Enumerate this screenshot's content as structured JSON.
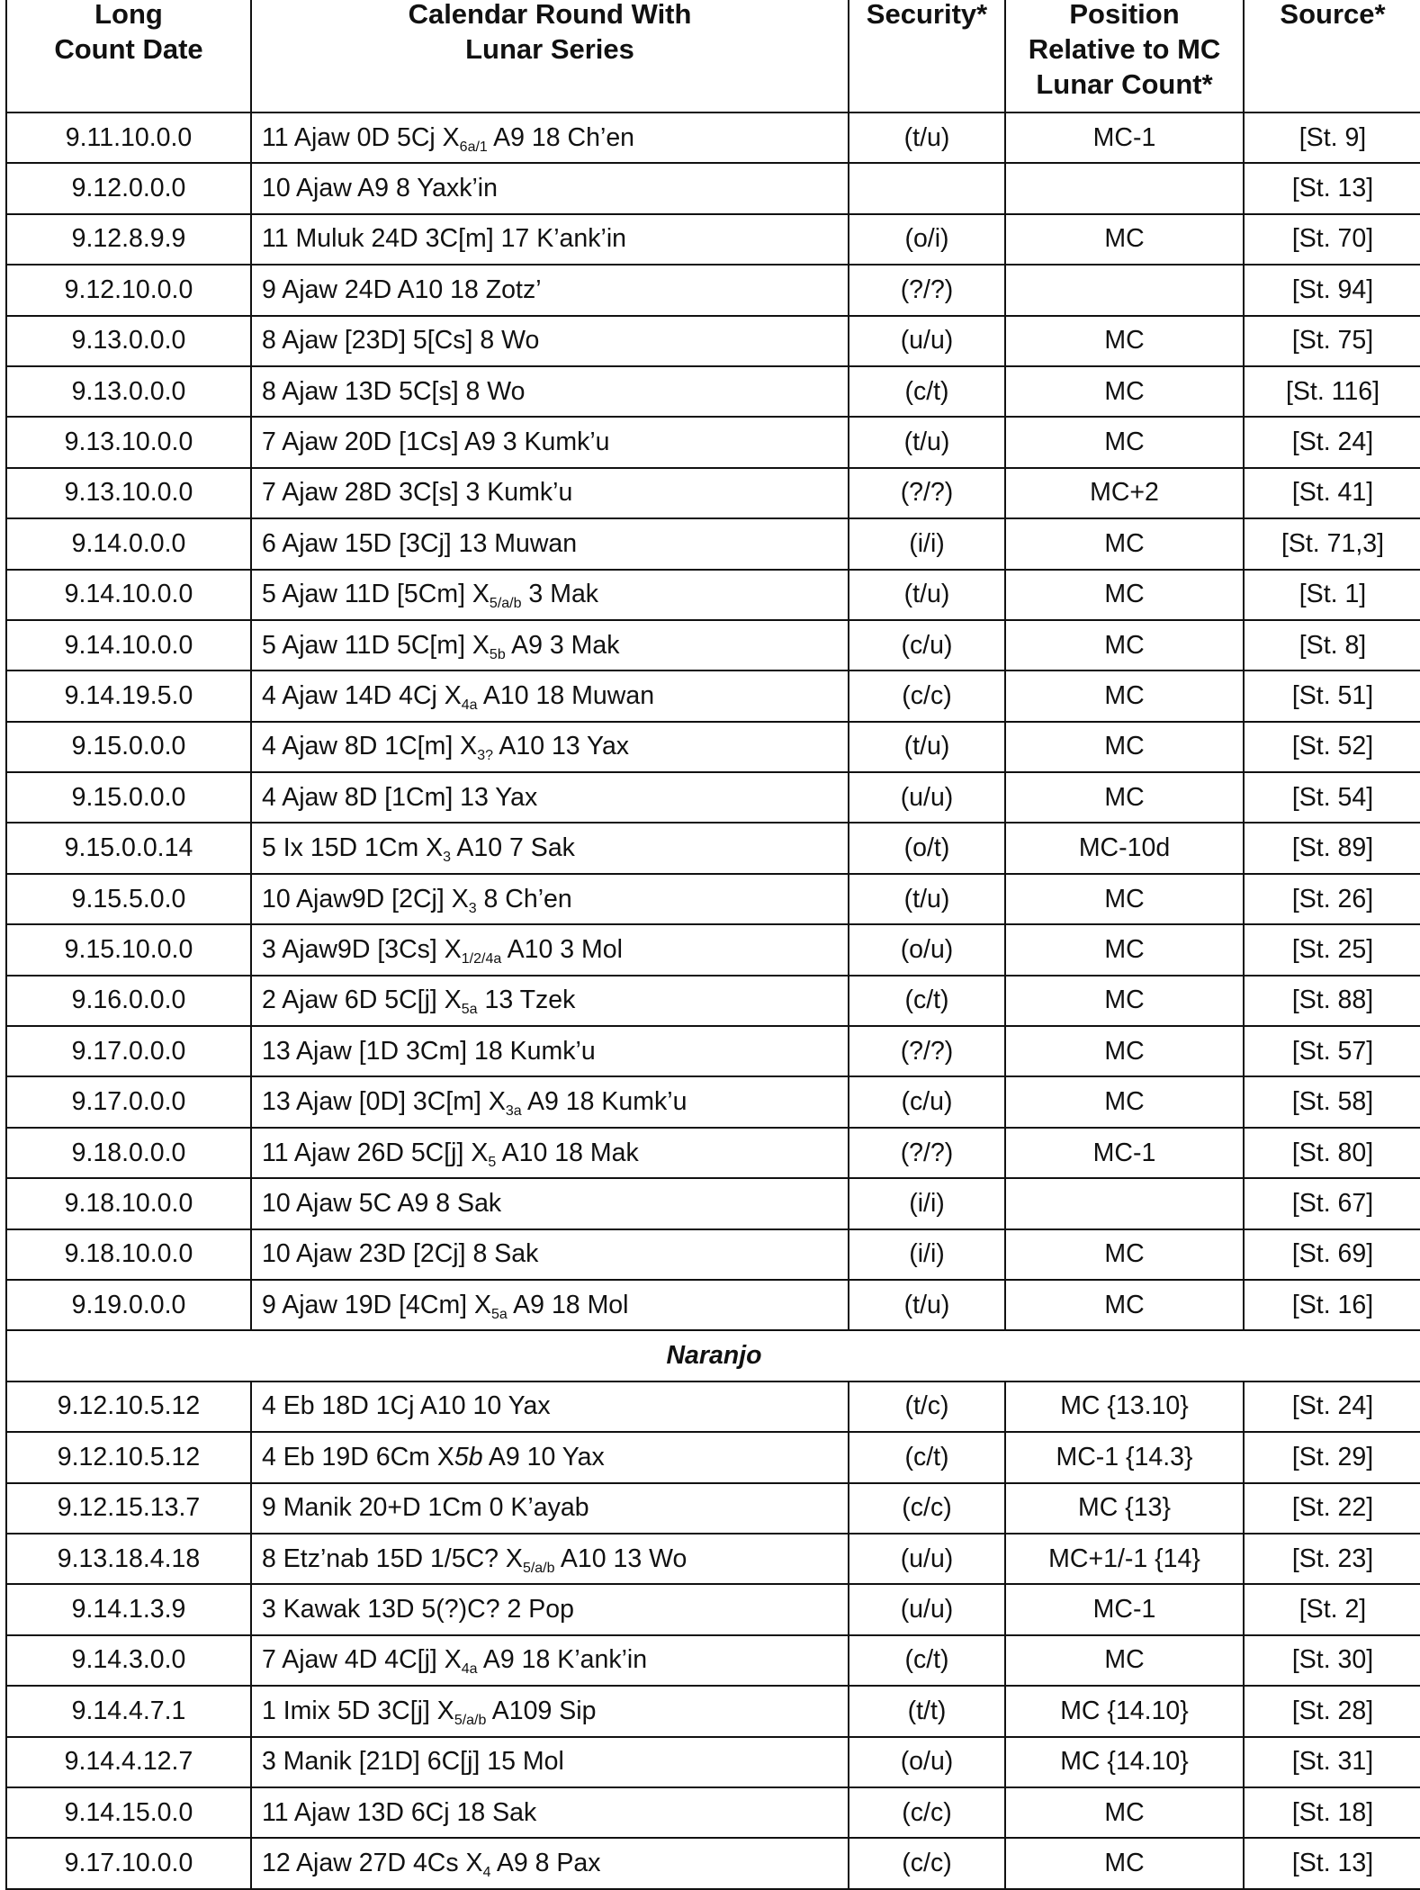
{
  "table": {
    "header": [
      [
        "Long",
        "Count Date"
      ],
      [
        "Calendar Round With",
        "Lunar Series"
      ],
      [
        "Security*"
      ],
      [
        "Position",
        "Relative to MC",
        "Lunar Count*"
      ],
      [
        "Source*"
      ]
    ],
    "rows": [
      [
        "9.11.10.0.0",
        [
          "11 Ajaw 0D 5Cj X",
          {
            "sub": "6a/1"
          },
          " A9 18 Ch’en"
        ],
        "(t/u)",
        "MC-1",
        "[St. 9]"
      ],
      [
        "9.12.0.0.0",
        "10 Ajaw A9 8 Yaxk’in",
        null,
        null,
        "[St. 13]"
      ],
      [
        "9.12.8.9.9",
        "11 Muluk 24D 3C[m] 17 K’ank’in",
        "(o/i)",
        "MC",
        "[St. 70]"
      ],
      [
        "9.12.10.0.0",
        "9 Ajaw 24D A10 18 Zotz’",
        "(?/?)",
        null,
        "[St. 94]"
      ],
      [
        "9.13.0.0.0",
        "8 Ajaw [23D] 5[Cs] 8 Wo",
        "(u/u)",
        "MC",
        "[St. 75]"
      ],
      [
        "9.13.0.0.0",
        "8 Ajaw 13D 5C[s] 8 Wo",
        "(c/t)",
        "MC",
        "[St. 116]"
      ],
      [
        "9.13.10.0.0",
        "7 Ajaw 20D [1Cs] A9 3 Kumk’u",
        "(t/u)",
        "MC",
        "[St. 24]"
      ],
      [
        "9.13.10.0.0",
        "7 Ajaw 28D 3C[s] 3 Kumk’u",
        "(?/?)",
        "MC+2",
        "[St. 41]"
      ],
      [
        "9.14.0.0.0",
        "6 Ajaw 15D [3Cj] 13 Muwan",
        "(i/i)",
        "MC",
        "[St. 71,3]"
      ],
      [
        "9.14.10.0.0",
        [
          "5 Ajaw 11D [5Cm] X",
          {
            "sub": "5/a/b"
          },
          " 3 Mak"
        ],
        "(t/u)",
        "MC",
        "[St. 1]"
      ],
      [
        "9.14.10.0.0",
        [
          "5 Ajaw 11D 5C[m] X",
          {
            "sub": "5b"
          },
          " A9 3 Mak"
        ],
        "(c/u)",
        "MC",
        "[St. 8]"
      ],
      [
        "9.14.19.5.0",
        [
          "4 Ajaw 14D 4Cj X",
          {
            "sub": "4a"
          },
          " A10 18 Muwan"
        ],
        "(c/c)",
        "MC",
        "[St. 51]"
      ],
      [
        "9.15.0.0.0",
        [
          "4 Ajaw 8D 1C[m] X",
          {
            "sub": "3?"
          },
          " A10 13 Yax"
        ],
        "(t/u)",
        "MC",
        "[St. 52]"
      ],
      [
        "9.15.0.0.0",
        "4 Ajaw 8D [1Cm] 13 Yax",
        "(u/u)",
        "MC",
        "[St. 54]"
      ],
      [
        "9.15.0.0.14",
        [
          "5 Ix 15D 1Cm X",
          {
            "sub": "3"
          },
          " A10 7 Sak"
        ],
        "(o/t)",
        "MC-10d",
        "[St. 89]"
      ],
      [
        "9.15.5.0.0",
        [
          "10 Ajaw9D [2Cj] X",
          {
            "sub": "3"
          },
          " 8 Ch’en"
        ],
        "(t/u)",
        "MC",
        "[St. 26]"
      ],
      [
        "9.15.10.0.0",
        [
          "3 Ajaw9D [3Cs] X",
          {
            "sub": "1/2/4a"
          },
          " A10 3 Mol"
        ],
        "(o/u)",
        "MC",
        "[St. 25]"
      ],
      [
        "9.16.0.0.0",
        [
          "2 Ajaw 6D 5C[j] X",
          {
            "sub": "5a"
          },
          " 13 Tzek"
        ],
        "(c/t)",
        "MC",
        "[St. 88]"
      ],
      [
        "9.17.0.0.0",
        "13 Ajaw [1D 3Cm] 18 Kumk’u",
        "(?/?)",
        "MC",
        "[St. 57]"
      ],
      [
        "9.17.0.0.0",
        [
          "13 Ajaw [0D] 3C[m] X",
          {
            "sub": "3a"
          },
          " A9 18 Kumk’u"
        ],
        "(c/u)",
        "MC",
        "[St. 58]"
      ],
      [
        "9.18.0.0.0",
        [
          "11 Ajaw 26D 5C[j] X",
          {
            "sub": "5"
          },
          " A10 18 Mak"
        ],
        "(?/?)",
        "MC-1",
        "[St. 80]"
      ],
      [
        "9.18.10.0.0",
        "10 Ajaw 5C A9 8 Sak",
        "(i/i)",
        null,
        "[St. 67]"
      ],
      [
        "9.18.10.0.0",
        "10 Ajaw 23D [2Cj] 8 Sak",
        "(i/i)",
        "MC",
        "[St. 69]"
      ],
      [
        "9.19.0.0.0",
        [
          "9 Ajaw 19D [4Cm] X",
          {
            "sub": "5a"
          },
          " A9 18 Mol"
        ],
        "(t/u)",
        "MC",
        "[St. 16]"
      ]
    ]
  },
  "section": {
    "title": "Naranjo",
    "rows": [
      [
        "9.12.10.5.12",
        "4 Eb 18D 1Cj A10 10 Yax",
        "(t/c)",
        "MC {13.10}",
        "[St. 24]"
      ],
      [
        "9.12.10.5.12",
        [
          "4 Eb 19D 6Cm X",
          {
            "i": "5b"
          },
          " A9 10 Yax"
        ],
        "(c/t)",
        "MC-1 {14.3}",
        "[St. 29]"
      ],
      [
        "9.12.15.13.7",
        "9 Manik 20+D 1Cm 0 K’ayab",
        "(c/c)",
        "MC {13}",
        "[St. 22]"
      ],
      [
        "9.13.18.4.18",
        [
          "8 Etz’nab 15D 1/5C? X",
          {
            "sub": "5/a/b"
          },
          " A10 13 Wo"
        ],
        "(u/u)",
        "MC+1/-1 {14}",
        "[St. 23]"
      ],
      [
        "9.14.1.3.9",
        "3 Kawak 13D 5(?)C? 2 Pop",
        "(u/u)",
        "MC-1",
        "[St. 2]"
      ],
      [
        "9.14.3.0.0",
        [
          "7 Ajaw 4D 4C[j] X",
          {
            "sub": "4a"
          },
          " A9 18 K’ank’in"
        ],
        "(c/t)",
        "MC",
        "[St. 30]"
      ],
      [
        "9.14.4.7.1",
        [
          "1 Imix 5D 3C[j] X",
          {
            "sub": "5/a/b"
          },
          " A109 Sip"
        ],
        "(t/t)",
        "MC {14.10}",
        "[St. 28]"
      ],
      [
        "9.14.4.12.7",
        "3 Manik [21D] 6C[j] 15 Mol",
        "(o/u)",
        "MC {14.10}",
        "[St. 31]"
      ],
      [
        "9.14.15.0.0",
        "11 Ajaw 13D 6Cj 18 Sak",
        "(c/c)",
        "MC",
        "[St. 18]"
      ],
      [
        "9.17.10.0.0",
        [
          "12 Ajaw 27D 4Cs X",
          {
            "sub": "4"
          },
          " A9 8 Pax"
        ],
        "(c/c)",
        "MC",
        "[St. 13]"
      ]
    ]
  }
}
